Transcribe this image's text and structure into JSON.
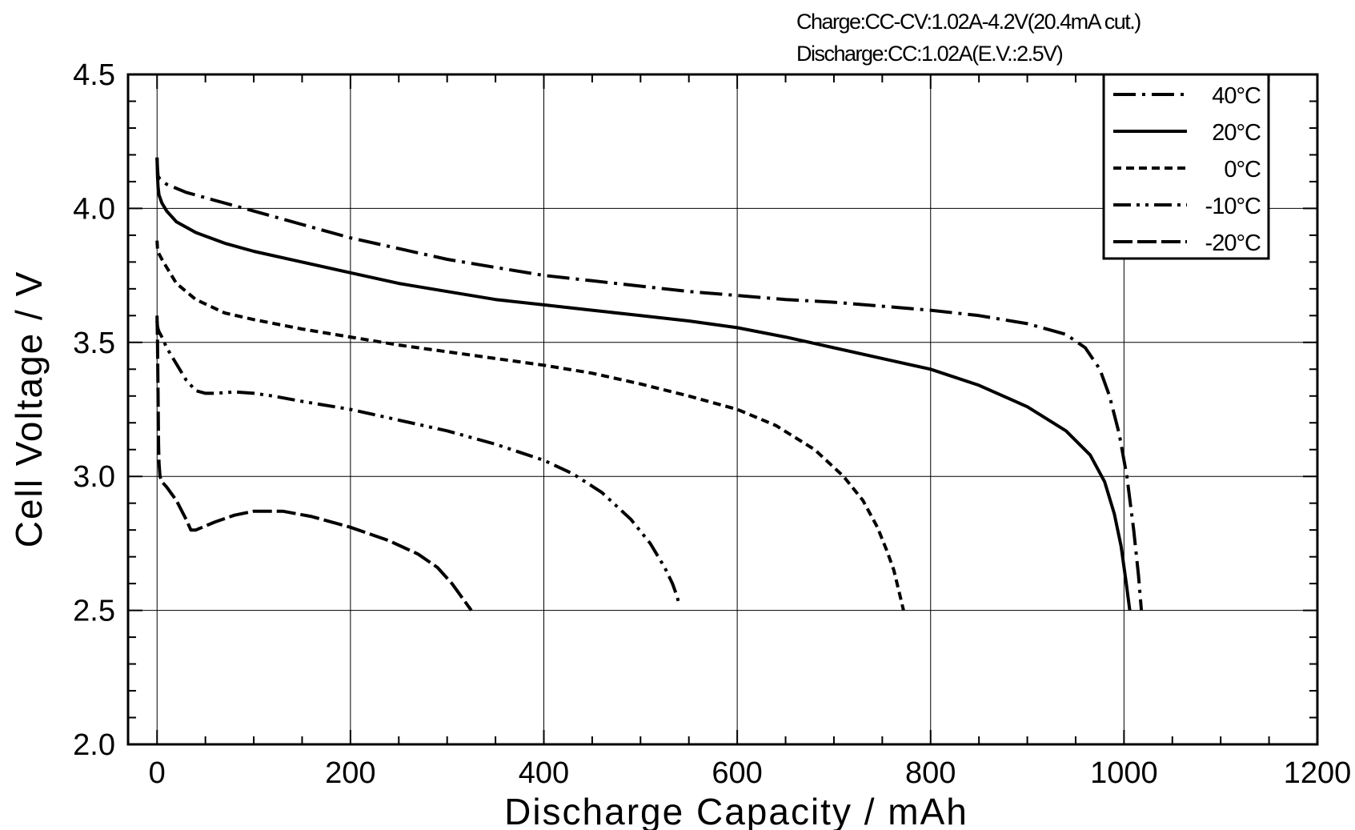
{
  "chart_data": {
    "type": "line",
    "conditions": [
      "Charge:CC-CV:1.02A-4.2V(20.4mA  cut.)",
      "Discharge:CC:1.02A(E.V.:2.5V)"
    ],
    "xlabel": "Discharge  Capacity  /  mAh",
    "ylabel": "Cell  Voltage  /  V",
    "xlim": [
      -30,
      1200
    ],
    "ylim": [
      2.0,
      4.5
    ],
    "xticks": [
      0,
      200,
      400,
      600,
      800,
      1000,
      1200
    ],
    "yticks": [
      2.0,
      2.5,
      3.0,
      3.5,
      4.0,
      4.5
    ],
    "xtick_labels": [
      "0",
      "200",
      "400",
      "600",
      "800",
      "1000",
      "1200"
    ],
    "ytick_labels": [
      "2.0",
      "2.5",
      "3.0",
      "3.5",
      "4.0",
      "4.5"
    ],
    "grid": true,
    "legend_position": "top-right",
    "series": [
      {
        "name": "40°C",
        "dash": "long-dash-dot",
        "x": [
          0,
          0.5,
          1,
          3,
          10,
          30,
          60,
          100,
          150,
          200,
          250,
          300,
          350,
          400,
          450,
          500,
          550,
          600,
          650,
          700,
          750,
          800,
          850,
          900,
          940,
          960,
          975,
          985,
          995,
          1003,
          1010,
          1015,
          1018
        ],
        "y": [
          4.19,
          4.15,
          4.12,
          4.11,
          4.09,
          4.06,
          4.03,
          3.99,
          3.94,
          3.89,
          3.85,
          3.81,
          3.78,
          3.75,
          3.73,
          3.71,
          3.69,
          3.675,
          3.66,
          3.65,
          3.635,
          3.62,
          3.6,
          3.57,
          3.53,
          3.48,
          3.4,
          3.3,
          3.16,
          3.0,
          2.8,
          2.63,
          2.5
        ]
      },
      {
        "name": "20°C",
        "dash": "solid",
        "x": [
          0,
          0.5,
          1,
          2,
          5,
          10,
          20,
          40,
          70,
          100,
          150,
          200,
          250,
          300,
          350,
          400,
          450,
          500,
          550,
          600,
          650,
          700,
          750,
          800,
          850,
          900,
          940,
          965,
          980,
          990,
          997,
          1002,
          1006
        ],
        "y": [
          4.19,
          4.12,
          4.08,
          4.05,
          4.02,
          3.99,
          3.95,
          3.91,
          3.87,
          3.84,
          3.8,
          3.76,
          3.72,
          3.69,
          3.66,
          3.64,
          3.62,
          3.6,
          3.58,
          3.555,
          3.52,
          3.48,
          3.44,
          3.4,
          3.34,
          3.26,
          3.17,
          3.08,
          2.98,
          2.86,
          2.74,
          2.61,
          2.5
        ]
      },
      {
        "name": "0°C",
        "dash": "short-dash",
        "x": [
          0,
          0.5,
          1,
          2,
          5,
          10,
          20,
          40,
          70,
          100,
          150,
          200,
          250,
          300,
          350,
          400,
          450,
          500,
          550,
          600,
          640,
          680,
          710,
          730,
          745,
          755,
          762,
          768,
          772
        ],
        "y": [
          3.88,
          3.85,
          3.84,
          3.83,
          3.81,
          3.78,
          3.72,
          3.66,
          3.61,
          3.585,
          3.55,
          3.52,
          3.49,
          3.465,
          3.44,
          3.415,
          3.385,
          3.345,
          3.3,
          3.25,
          3.19,
          3.1,
          3.0,
          2.91,
          2.81,
          2.72,
          2.65,
          2.56,
          2.5
        ]
      },
      {
        "name": "-10°C",
        "dash": "dash-dot-dot",
        "x": [
          0,
          0.5,
          1,
          2,
          5,
          10,
          20,
          30,
          40,
          50,
          60,
          80,
          100,
          120,
          150,
          200,
          250,
          300,
          350,
          400,
          430,
          460,
          490,
          510,
          525,
          533,
          538,
          540
        ],
        "y": [
          3.58,
          3.56,
          3.55,
          3.54,
          3.52,
          3.48,
          3.42,
          3.36,
          3.32,
          3.31,
          3.31,
          3.315,
          3.31,
          3.3,
          3.28,
          3.25,
          3.21,
          3.17,
          3.12,
          3.06,
          3.01,
          2.94,
          2.84,
          2.75,
          2.66,
          2.6,
          2.55,
          2.52
        ]
      },
      {
        "name": "-20°C",
        "dash": "long-dash",
        "x": [
          0,
          0.5,
          1,
          1.5,
          2,
          3,
          5,
          10,
          20,
          30,
          35,
          40,
          50,
          60,
          80,
          100,
          130,
          160,
          200,
          240,
          270,
          290,
          305,
          315,
          325
        ],
        "y": [
          3.6,
          3.5,
          3.3,
          3.12,
          3.05,
          3.0,
          2.98,
          2.96,
          2.91,
          2.84,
          2.8,
          2.8,
          2.815,
          2.83,
          2.855,
          2.87,
          2.87,
          2.85,
          2.81,
          2.76,
          2.71,
          2.66,
          2.6,
          2.55,
          2.5
        ]
      }
    ]
  }
}
